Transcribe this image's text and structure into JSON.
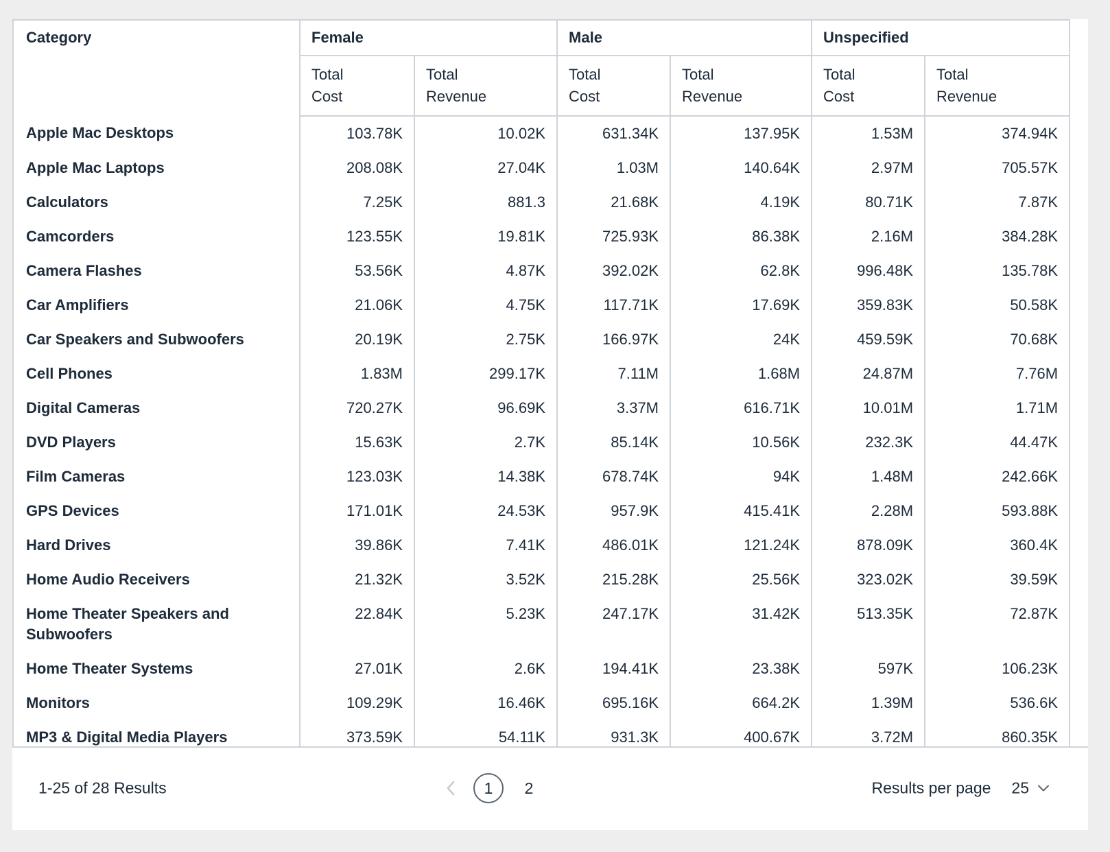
{
  "table": {
    "category_header": "Category",
    "groups": [
      {
        "label": "Female"
      },
      {
        "label": "Male"
      },
      {
        "label": "Unspecified"
      }
    ],
    "subheaders": [
      "Total\nCost",
      "Total\nRevenue",
      "Total\nCost",
      "Total\nRevenue",
      "Total\nCost",
      "Total\nRevenue"
    ],
    "rows": [
      {
        "category": "Apple Mac Desktops",
        "values": [
          "103.78K",
          "10.02K",
          "631.34K",
          "137.95K",
          "1.53M",
          "374.94K"
        ]
      },
      {
        "category": "Apple Mac Laptops",
        "values": [
          "208.08K",
          "27.04K",
          "1.03M",
          "140.64K",
          "2.97M",
          "705.57K"
        ]
      },
      {
        "category": "Calculators",
        "values": [
          "7.25K",
          "881.3",
          "21.68K",
          "4.19K",
          "80.71K",
          "7.87K"
        ]
      },
      {
        "category": "Camcorders",
        "values": [
          "123.55K",
          "19.81K",
          "725.93K",
          "86.38K",
          "2.16M",
          "384.28K"
        ]
      },
      {
        "category": "Camera Flashes",
        "values": [
          "53.56K",
          "4.87K",
          "392.02K",
          "62.8K",
          "996.48K",
          "135.78K"
        ]
      },
      {
        "category": "Car Amplifiers",
        "values": [
          "21.06K",
          "4.75K",
          "117.71K",
          "17.69K",
          "359.83K",
          "50.58K"
        ]
      },
      {
        "category": "Car Speakers and Subwoofers",
        "values": [
          "20.19K",
          "2.75K",
          "166.97K",
          "24K",
          "459.59K",
          "70.68K"
        ]
      },
      {
        "category": "Cell Phones",
        "values": [
          "1.83M",
          "299.17K",
          "7.11M",
          "1.68M",
          "24.87M",
          "7.76M"
        ]
      },
      {
        "category": "Digital Cameras",
        "values": [
          "720.27K",
          "96.69K",
          "3.37M",
          "616.71K",
          "10.01M",
          "1.71M"
        ]
      },
      {
        "category": "DVD Players",
        "values": [
          "15.63K",
          "2.7K",
          "85.14K",
          "10.56K",
          "232.3K",
          "44.47K"
        ]
      },
      {
        "category": "Film Cameras",
        "values": [
          "123.03K",
          "14.38K",
          "678.74K",
          "94K",
          "1.48M",
          "242.66K"
        ]
      },
      {
        "category": "GPS Devices",
        "values": [
          "171.01K",
          "24.53K",
          "957.9K",
          "415.41K",
          "2.28M",
          "593.88K"
        ]
      },
      {
        "category": "Hard Drives",
        "values": [
          "39.86K",
          "7.41K",
          "486.01K",
          "121.24K",
          "878.09K",
          "360.4K"
        ]
      },
      {
        "category": "Home Audio Receivers",
        "values": [
          "21.32K",
          "3.52K",
          "215.28K",
          "25.56K",
          "323.02K",
          "39.59K"
        ]
      },
      {
        "category": "Home Theater Speakers and Subwoofers",
        "values": [
          "22.84K",
          "5.23K",
          "247.17K",
          "31.42K",
          "513.35K",
          "72.87K"
        ]
      },
      {
        "category": "Home Theater Systems",
        "values": [
          "27.01K",
          "2.6K",
          "194.41K",
          "23.38K",
          "597K",
          "106.23K"
        ]
      },
      {
        "category": "Monitors",
        "values": [
          "109.29K",
          "16.46K",
          "695.16K",
          "664.2K",
          "1.39M",
          "536.6K"
        ]
      },
      {
        "category": "MP3 & Digital Media Players",
        "values": [
          "373.59K",
          "54.11K",
          "931.3K",
          "400.67K",
          "3.72M",
          "860.35K"
        ]
      }
    ]
  },
  "footer": {
    "results_summary": "1-25 of 28 Results",
    "pages": [
      "1",
      "2"
    ],
    "current_page": "1",
    "results_per_page_label": "Results per page",
    "results_per_page_value": "25"
  },
  "colors": {
    "text": "#1d2b3a",
    "border": "#cfd3da",
    "page_background": "#eeeeee",
    "card_background": "#ffffff",
    "disabled_control": "#c6c9cd",
    "active_page_circle": "#5b6670"
  }
}
